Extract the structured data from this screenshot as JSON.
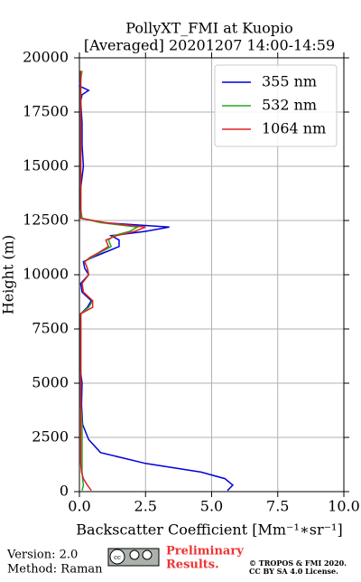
{
  "chart_data": {
    "type": "line",
    "title": "PollyXT_FMI at Kuopio",
    "subtitle": "[Averaged] 20201207 14:00-14:59",
    "xlabel": "Backscatter Coefficient [Mm⁻¹∗sr⁻¹]",
    "ylabel": "Height (m)",
    "xlim": [
      0,
      10
    ],
    "xticks": [
      {
        "value": 0,
        "label": "0.0"
      },
      {
        "value": 2.5,
        "label": "2.5"
      },
      {
        "value": 5,
        "label": "5.0"
      },
      {
        "value": 7.5,
        "label": "7.5"
      },
      {
        "value": 10,
        "label": "10.0"
      }
    ],
    "ylim": [
      0,
      20000
    ],
    "yticks": [
      0,
      2500,
      5000,
      7500,
      10000,
      12500,
      15000,
      17500,
      20000
    ],
    "grid": true,
    "legend": "upper right",
    "y": [
      50,
      300,
      600,
      900,
      1300,
      1800,
      2400,
      3100,
      4000,
      5000,
      5500,
      6000,
      7000,
      8000,
      8200,
      8500,
      8800,
      9200,
      9600,
      10000,
      10300,
      10600,
      10800,
      11000,
      11300,
      11600,
      11800,
      12000,
      12200,
      12400,
      12600,
      13000,
      14000,
      15000,
      16000,
      17000,
      18000,
      18300,
      18500,
      18700,
      19000,
      19400
    ],
    "series": [
      {
        "name": "355 nm",
        "color": "#0000dd",
        "values": [
          5.6,
          5.8,
          5.5,
          4.6,
          2.5,
          0.8,
          0.35,
          0.12,
          0.08,
          0.1,
          0.05,
          0.05,
          0.05,
          0.05,
          0.05,
          0.3,
          0.45,
          0.1,
          0.05,
          0.35,
          0.2,
          0.15,
          0.5,
          0.9,
          1.5,
          1.5,
          1.2,
          2.5,
          3.4,
          0.9,
          0.1,
          0.05,
          0.05,
          0.15,
          0.1,
          0.1,
          0.05,
          0.1,
          0.35,
          0,
          0.05,
          0.05
        ]
      },
      {
        "name": "532 nm",
        "color": "#22aa22",
        "values": [
          0.1,
          0.15,
          0.12,
          0.1,
          0.1,
          0.1,
          0.1,
          0.1,
          0.05,
          0.05,
          0.05,
          0.05,
          0.05,
          0.05,
          0.05,
          0.35,
          0.5,
          0.15,
          0.1,
          0.35,
          0.3,
          0.2,
          0.45,
          0.75,
          1.2,
          1.1,
          1.3,
          1.9,
          2.2,
          0.8,
          0.1,
          0.05,
          0.05,
          0.05,
          0.05,
          0.05,
          0.05,
          0.05,
          0.05,
          0.05,
          0.05,
          0.1
        ]
      },
      {
        "name": "1064 nm",
        "color": "#dd2222",
        "values": [
          0.45,
          0.3,
          0.15,
          0.08,
          0.05,
          0.05,
          0.05,
          0.05,
          0.05,
          0.05,
          0.05,
          0.05,
          0.05,
          0.05,
          0.05,
          0.5,
          0.5,
          0.15,
          0.1,
          0.35,
          0.3,
          0.2,
          0.4,
          0.7,
          1.1,
          1,
          1.4,
          2.1,
          2.5,
          1,
          0.05,
          0.05,
          0.05,
          0.05,
          0.05,
          0.05,
          0.05,
          0.05,
          0.05,
          0.05,
          0.05,
          0.05
        ]
      }
    ]
  },
  "footer": {
    "version": "Version: 2.0",
    "method": "Method: Raman",
    "preliminary": [
      "Preliminary",
      "Results."
    ],
    "copyright": [
      "© TROPOS & FMI 2020.",
      "CC BY SA 4.0 License."
    ]
  }
}
